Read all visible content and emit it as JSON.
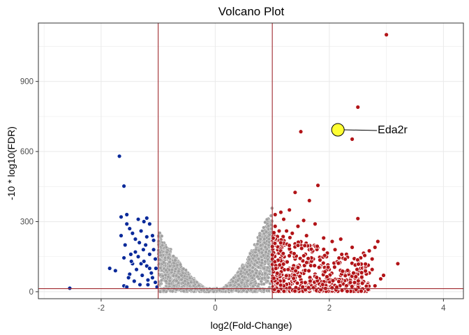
{
  "chart_data": {
    "type": "scatter",
    "title": "Volcano Plot",
    "xlabel": "log2(Fold-Change)",
    "ylabel": "-10 * log10(FDR)",
    "xlim": [
      -3.1,
      4.35
    ],
    "ylim": [
      -30,
      1150
    ],
    "x_ticks": [
      -2,
      0,
      2,
      4
    ],
    "x_tick_labels": [
      "-2",
      "0",
      "2",
      "4"
    ],
    "y_ticks": [
      0,
      300,
      600,
      900
    ],
    "y_tick_labels": [
      "0",
      "300",
      "600",
      "900"
    ],
    "grid": true,
    "legend": "none",
    "thresholds": {
      "vertical": [
        -1,
        1
      ],
      "horizontal": 13
    },
    "colors": {
      "down": "#0a2a9a",
      "neutral": "#a0a0a0",
      "up": "#b21418",
      "threshold_line": "#a0282e",
      "highlight": "#ffff33",
      "grid": "#ebebeb",
      "panel_border": "#333333"
    },
    "highlight": {
      "label": "Eda2r",
      "x": 2.15,
      "y": 693
    },
    "series": [
      {
        "group": "down",
        "points": [
          [
            -2.55,
            15
          ],
          [
            -1.68,
            580
          ],
          [
            -1.6,
            452
          ],
          [
            -1.65,
            320
          ],
          [
            -1.55,
            330
          ],
          [
            -1.35,
            310
          ],
          [
            -1.55,
            290
          ],
          [
            -1.25,
            300
          ],
          [
            -1.2,
            315
          ],
          [
            -1.15,
            290
          ],
          [
            -1.45,
            250
          ],
          [
            -1.5,
            270
          ],
          [
            -1.3,
            260
          ],
          [
            -1.65,
            240
          ],
          [
            -1.58,
            200
          ],
          [
            -1.4,
            225
          ],
          [
            -1.2,
            235
          ],
          [
            -1.1,
            240
          ],
          [
            -1.08,
            220
          ],
          [
            -1.85,
            100
          ],
          [
            -1.75,
            90
          ],
          [
            -1.6,
            145
          ],
          [
            -1.6,
            25
          ],
          [
            -1.55,
            20
          ],
          [
            -1.5,
            75
          ],
          [
            -1.52,
            60
          ],
          [
            -1.45,
            120
          ],
          [
            -1.4,
            170
          ],
          [
            -1.35,
            150
          ],
          [
            -1.3,
            120
          ],
          [
            -1.25,
            130
          ],
          [
            -1.22,
            200
          ],
          [
            -1.2,
            110
          ],
          [
            -1.15,
            100
          ],
          [
            -1.12,
            80
          ],
          [
            -1.1,
            60
          ],
          [
            -1.05,
            140
          ],
          [
            -1.05,
            40
          ],
          [
            -1.02,
            20
          ],
          [
            -1.18,
            50
          ],
          [
            -1.28,
            70
          ],
          [
            -1.32,
            30
          ],
          [
            -1.38,
            95
          ],
          [
            -1.42,
            45
          ],
          [
            -1.48,
            160
          ],
          [
            -1.26,
            180
          ],
          [
            -1.15,
            160
          ],
          [
            -1.08,
            180
          ],
          [
            -1.04,
            100
          ],
          [
            -1.33,
            210
          ],
          [
            -1.47,
            130
          ],
          [
            -1.18,
            30
          ]
        ]
      },
      {
        "group": "up",
        "points": [
          [
            3.0,
            1100
          ],
          [
            2.5,
            790
          ],
          [
            2.4,
            653
          ],
          [
            1.5,
            685
          ],
          [
            1.8,
            455
          ],
          [
            1.65,
            390
          ],
          [
            1.4,
            425
          ],
          [
            2.5,
            313
          ],
          [
            2.85,
            215
          ],
          [
            2.8,
            190
          ],
          [
            2.4,
            190
          ],
          [
            2.6,
            165
          ],
          [
            2.62,
            155
          ],
          [
            2.7,
            175
          ],
          [
            2.55,
            145
          ],
          [
            2.75,
            140
          ],
          [
            3.2,
            120
          ],
          [
            2.95,
            70
          ],
          [
            2.2,
            225
          ],
          [
            2.05,
            215
          ],
          [
            1.3,
            350
          ],
          [
            1.15,
            340
          ],
          [
            1.05,
            330
          ],
          [
            1.2,
            310
          ],
          [
            1.55,
            305
          ],
          [
            1.75,
            290
          ],
          [
            1.45,
            280
          ],
          [
            1.25,
            260
          ],
          [
            1.35,
            250
          ],
          [
            1.6,
            240
          ],
          [
            1.9,
            230
          ],
          [
            1.1,
            220
          ],
          [
            1.5,
            200
          ],
          [
            1.8,
            190
          ],
          [
            2.1,
            180
          ],
          [
            1.3,
            180
          ],
          [
            1.7,
            170
          ],
          [
            2.3,
            160
          ],
          [
            1.05,
            160
          ],
          [
            1.95,
            150
          ],
          [
            1.4,
            140
          ],
          [
            2.15,
            130
          ],
          [
            1.65,
            125
          ],
          [
            2.4,
            120
          ],
          [
            1.15,
            115
          ],
          [
            1.85,
            110
          ],
          [
            2.55,
            100
          ],
          [
            1.3,
            100
          ],
          [
            2.0,
            95
          ],
          [
            1.55,
            90
          ],
          [
            2.25,
            85
          ],
          [
            1.1,
            80
          ],
          [
            2.7,
            80
          ],
          [
            1.75,
            75
          ],
          [
            1.45,
            70
          ],
          [
            2.45,
            65
          ],
          [
            1.95,
            60
          ],
          [
            1.2,
            55
          ],
          [
            2.3,
            50
          ],
          [
            1.65,
            45
          ],
          [
            2.6,
            40
          ],
          [
            1.35,
            35
          ],
          [
            2.05,
            30
          ],
          [
            1.5,
            25
          ],
          [
            2.8,
            25
          ],
          [
            1.85,
            20
          ],
          [
            1.15,
            15
          ],
          [
            2.4,
            15
          ],
          [
            1.6,
            12
          ],
          [
            2.15,
            50
          ],
          [
            1.25,
            130
          ],
          [
            1.9,
            85
          ],
          [
            2.5,
            55
          ],
          [
            1.4,
            60
          ],
          [
            1.02,
            45
          ],
          [
            1.08,
            100
          ],
          [
            2.35,
            35
          ],
          [
            1.72,
            140
          ],
          [
            2.9,
            55
          ],
          [
            2.65,
            110
          ],
          [
            1.58,
            160
          ],
          [
            1.22,
            200
          ],
          [
            1.12,
            260
          ],
          [
            1.05,
            280
          ],
          [
            1.35,
            90
          ],
          [
            1.75,
            30
          ],
          [
            2.2,
            70
          ],
          [
            1.95,
            45
          ],
          [
            2.75,
            95
          ],
          [
            1.48,
            110
          ]
        ]
      }
    ]
  }
}
